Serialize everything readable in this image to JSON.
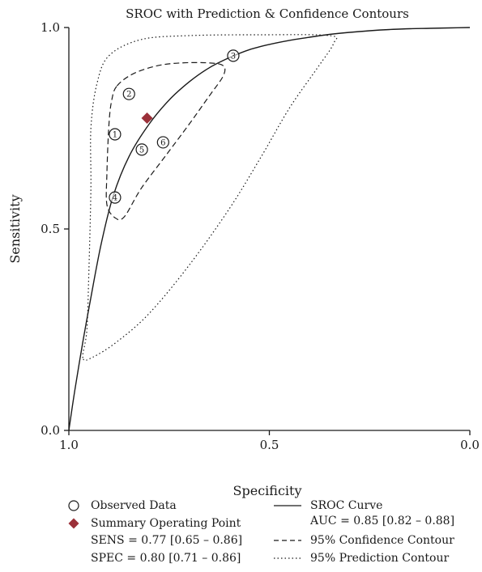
{
  "chart_data": {
    "type": "scatter",
    "title": "SROC with Prediction & Confidence Contours",
    "xlabel": "Specificity",
    "ylabel": "Sensitivity",
    "xlim": [
      1.0,
      0.0
    ],
    "ylim": [
      0.0,
      1.0
    ],
    "x_reversed": true,
    "xticks": [
      1.0,
      0.5,
      0.0
    ],
    "xtick_labels": [
      "1.0",
      "0.5",
      "0.0"
    ],
    "yticks": [
      0.0,
      0.5,
      1.0
    ],
    "ytick_labels": [
      "0.0",
      "0.5",
      "1.0"
    ],
    "grid": false,
    "legend_position": "bottom",
    "observed": [
      {
        "label": "1",
        "x": 0.885,
        "y": 0.735
      },
      {
        "label": "2",
        "x": 0.85,
        "y": 0.835
      },
      {
        "label": "3",
        "x": 0.59,
        "y": 0.93
      },
      {
        "label": "4",
        "x": 0.885,
        "y": 0.578
      },
      {
        "label": "5",
        "x": 0.818,
        "y": 0.697
      },
      {
        "label": "6",
        "x": 0.765,
        "y": 0.715
      }
    ],
    "summary_point": {
      "x": 0.805,
      "y": 0.775
    },
    "sroc_curve": [
      [
        1.0,
        0.0
      ],
      [
        0.985,
        0.1
      ],
      [
        0.965,
        0.22
      ],
      [
        0.945,
        0.33
      ],
      [
        0.92,
        0.46
      ],
      [
        0.89,
        0.58
      ],
      [
        0.85,
        0.68
      ],
      [
        0.8,
        0.76
      ],
      [
        0.75,
        0.82
      ],
      [
        0.7,
        0.865
      ],
      [
        0.65,
        0.9
      ],
      [
        0.6,
        0.925
      ],
      [
        0.55,
        0.945
      ],
      [
        0.5,
        0.958
      ],
      [
        0.45,
        0.968
      ],
      [
        0.4,
        0.976
      ],
      [
        0.35,
        0.983
      ],
      [
        0.3,
        0.988
      ],
      [
        0.25,
        0.992
      ],
      [
        0.2,
        0.995
      ],
      [
        0.15,
        0.997
      ],
      [
        0.1,
        0.998
      ],
      [
        0.05,
        0.999
      ],
      [
        0.0,
        1.0
      ]
    ],
    "confidence_contour": [
      [
        0.88,
        0.855
      ],
      [
        0.84,
        0.885
      ],
      [
        0.78,
        0.905
      ],
      [
        0.72,
        0.912
      ],
      [
        0.65,
        0.912
      ],
      [
        0.615,
        0.905
      ],
      [
        0.615,
        0.88
      ],
      [
        0.65,
        0.83
      ],
      [
        0.7,
        0.76
      ],
      [
        0.76,
        0.68
      ],
      [
        0.82,
        0.6
      ],
      [
        0.862,
        0.53
      ],
      [
        0.885,
        0.528
      ],
      [
        0.905,
        0.56
      ],
      [
        0.905,
        0.64
      ],
      [
        0.9,
        0.76
      ],
      [
        0.893,
        0.82
      ]
    ],
    "prediction_contour": [
      [
        0.965,
        0.18
      ],
      [
        0.955,
        0.25
      ],
      [
        0.95,
        0.4
      ],
      [
        0.945,
        0.6
      ],
      [
        0.945,
        0.75
      ],
      [
        0.93,
        0.86
      ],
      [
        0.9,
        0.93
      ],
      [
        0.82,
        0.97
      ],
      [
        0.7,
        0.98
      ],
      [
        0.52,
        0.982
      ],
      [
        0.35,
        0.98
      ],
      [
        0.34,
        0.96
      ],
      [
        0.38,
        0.9
      ],
      [
        0.45,
        0.8
      ],
      [
        0.52,
        0.68
      ],
      [
        0.6,
        0.55
      ],
      [
        0.7,
        0.41
      ],
      [
        0.8,
        0.29
      ],
      [
        0.88,
        0.22
      ],
      [
        0.94,
        0.182
      ]
    ],
    "legend": {
      "observed": "Observed Data",
      "summary": "Summary Operating Point",
      "sens": "SENS = 0.77 [0.65 – 0.86]",
      "spec": "SPEC = 0.80 [0.71 – 0.86]",
      "sroc": "SROC Curve",
      "auc": "AUC = 0.85 [0.82 – 0.88]",
      "confidence": "95% Confidence Contour",
      "prediction": "95% Prediction Contour"
    },
    "colors": {
      "summary": "#9b3039",
      "ink": "#1a1a1a"
    }
  }
}
